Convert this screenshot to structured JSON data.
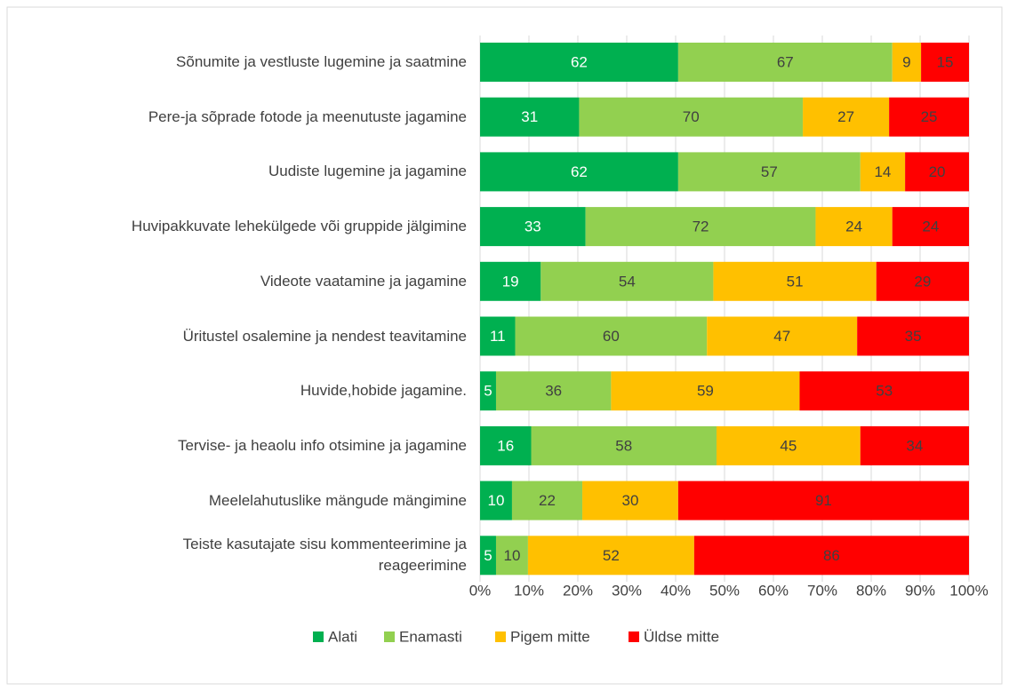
{
  "chart_data": {
    "type": "bar",
    "orientation": "horizontal",
    "stack": "percent",
    "categories": [
      "Sõnumite ja vestluste lugemine ja saatmine",
      "Pere-ja sõprade fotode ja meenutuste jagamine",
      "Uudiste lugemine ja jagamine",
      "Huvipakkuvate lehekülgede või gruppide jälgimine",
      "Videote vaatamine ja jagamine",
      "Üritustel osalemine ja nendest teavitamine",
      "Huvide,hobide jagamine.",
      "Tervise- ja heaolu info otsimine ja jagamine",
      "Meelelahutuslike mängude mängimine",
      "Teiste kasutajate sisu kommenteerimine ja\nreageerimine"
    ],
    "series": [
      {
        "name": "Alati",
        "color": "#00b050",
        "values": [
          62,
          31,
          62,
          33,
          19,
          11,
          5,
          16,
          10,
          5
        ]
      },
      {
        "name": "Enamasti",
        "color": "#92d050",
        "values": [
          67,
          70,
          57,
          72,
          54,
          60,
          36,
          58,
          22,
          10
        ]
      },
      {
        "name": "Pigem mitte",
        "color": "#ffc000",
        "values": [
          9,
          27,
          14,
          24,
          51,
          47,
          59,
          45,
          30,
          52
        ]
      },
      {
        "name": "Üldse mitte",
        "color": "#ff0000",
        "values": [
          15,
          25,
          20,
          24,
          29,
          35,
          53,
          34,
          91,
          86
        ]
      }
    ],
    "xlim": [
      0,
      100
    ],
    "xticks": [
      {
        "value": 0,
        "label": "0%"
      },
      {
        "value": 10,
        "label": "10%"
      },
      {
        "value": 20,
        "label": "20%"
      },
      {
        "value": 30,
        "label": "30%"
      },
      {
        "value": 40,
        "label": "40%"
      },
      {
        "value": 50,
        "label": "50%"
      },
      {
        "value": 60,
        "label": "60%"
      },
      {
        "value": 70,
        "label": "70%"
      },
      {
        "value": 80,
        "label": "80%"
      },
      {
        "value": 90,
        "label": "90%"
      },
      {
        "value": 100,
        "label": "100%"
      }
    ],
    "grid": true,
    "legend": "bottom"
  }
}
